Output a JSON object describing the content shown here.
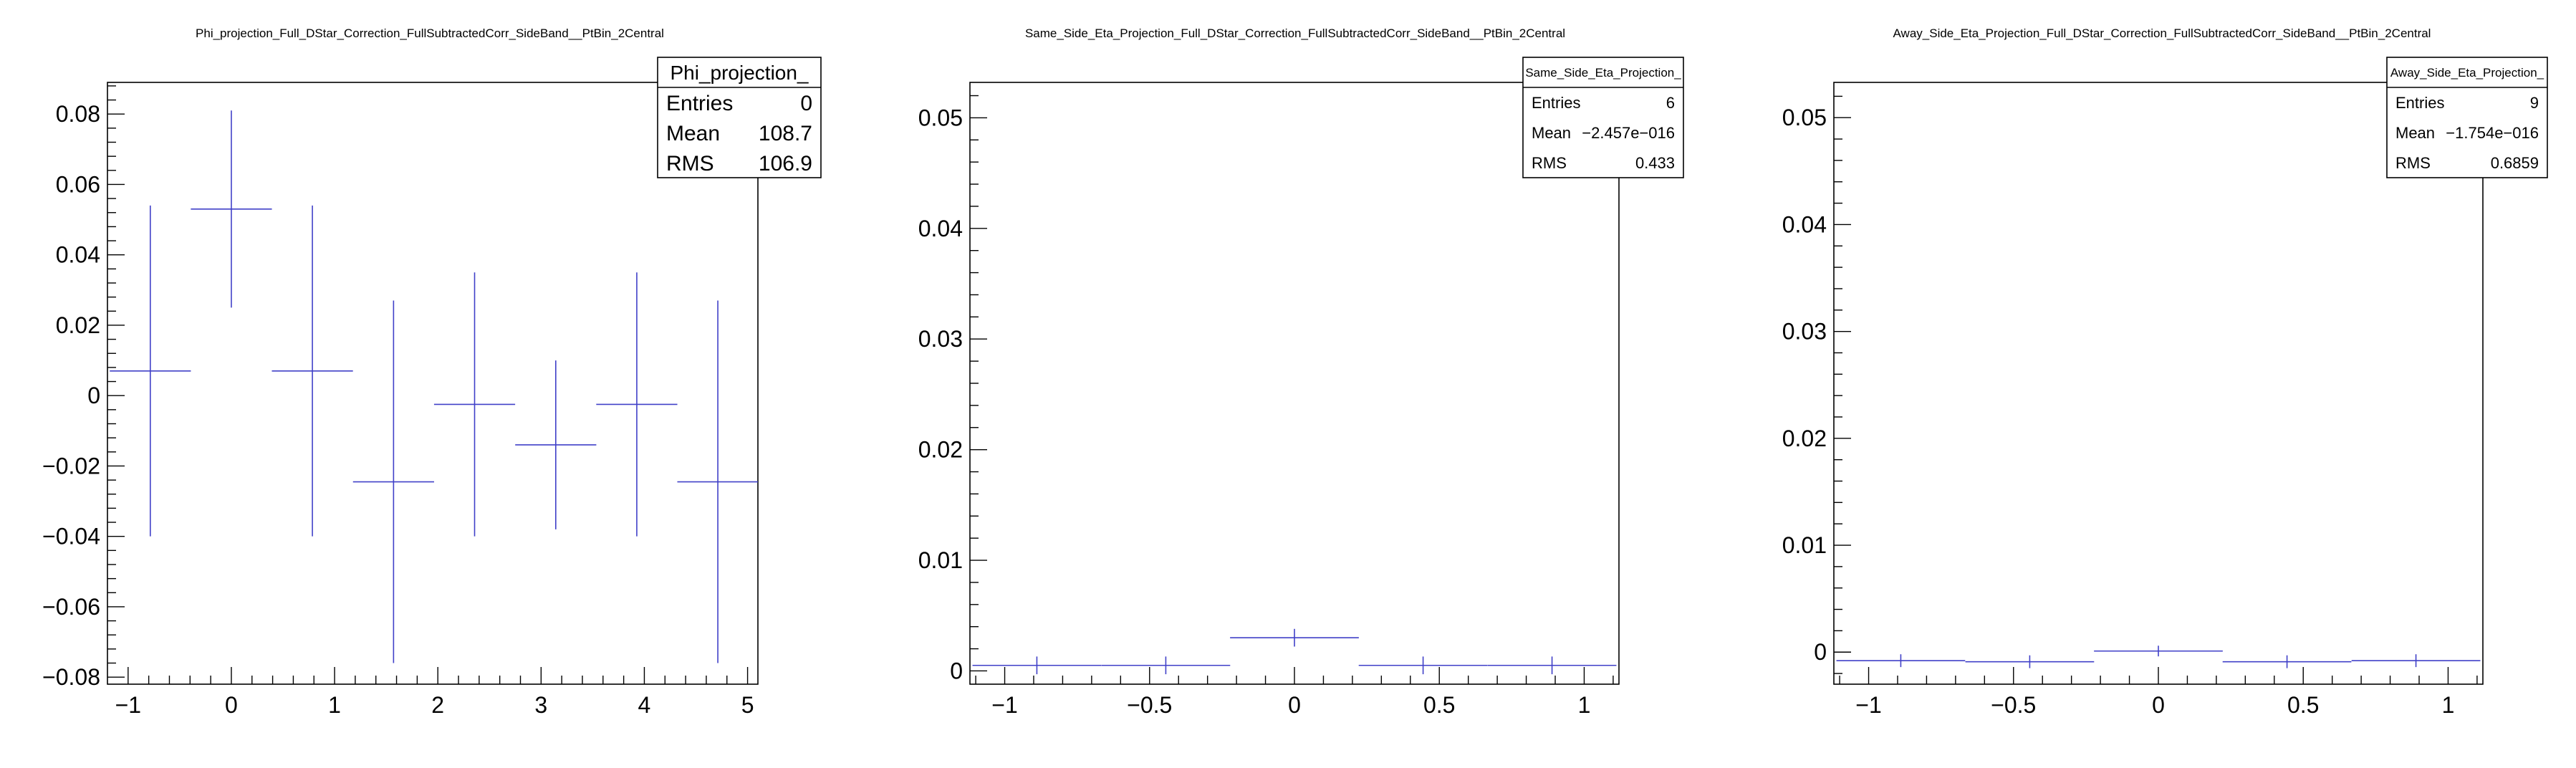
{
  "chart_data": [
    {
      "type": "scatter",
      "title": "Phi_projection_Full_DStar_Correction_FullSubtractedCorr_SideBand__PtBin_2Central",
      "xlabel": "",
      "ylabel": "",
      "xlim": [
        -1.2,
        5.1
      ],
      "ylim": [
        -0.082,
        0.089
      ],
      "xticks": [
        -1,
        0,
        1,
        2,
        3,
        4,
        5
      ],
      "xtick_labels": [
        "−1",
        "0",
        "1",
        "2",
        "3",
        "4",
        "5"
      ],
      "yticks": [
        -0.08,
        -0.06,
        -0.04,
        -0.02,
        0,
        0.02,
        0.04,
        0.06,
        0.08
      ],
      "ytick_labels": [
        "−0.08",
        "−0.06",
        "−0.04",
        "−0.02",
        "0",
        "0.02",
        "0.04",
        "0.06",
        "0.08"
      ],
      "bin_half_width": 0.3927,
      "points": [
        {
          "x": -0.785,
          "y": 0.007,
          "yerr": 0.047
        },
        {
          "x": 0.0,
          "y": 0.053,
          "yerr": 0.028
        },
        {
          "x": 0.785,
          "y": 0.007,
          "yerr": 0.047
        },
        {
          "x": 1.571,
          "y": -0.0245,
          "yerr": 0.0515
        },
        {
          "x": 2.356,
          "y": -0.0025,
          "yerr": 0.0375
        },
        {
          "x": 3.142,
          "y": -0.014,
          "yerr": 0.024
        },
        {
          "x": 3.927,
          "y": -0.0025,
          "yerr": 0.0375
        },
        {
          "x": 4.712,
          "y": -0.0245,
          "yerr": 0.0515
        }
      ],
      "stats": {
        "name": "Phi_projection_",
        "rows": [
          {
            "label": "Entries",
            "value": "0"
          },
          {
            "label": "Mean",
            "value": "108.7"
          },
          {
            "label": "RMS",
            "value": "106.9"
          }
        ]
      }
    },
    {
      "type": "scatter",
      "title": "Same_Side_Eta_Projection_Full_DStar_Correction_FullSubtractedCorr_SideBand__PtBin_2Central",
      "xlabel": "",
      "ylabel": "",
      "xlim": [
        -1.12,
        1.12
      ],
      "ylim": [
        -0.0012,
        0.0532
      ],
      "xticks": [
        -1,
        -0.5,
        0,
        0.5,
        1
      ],
      "xtick_labels": [
        "−1",
        "−0.5",
        "0",
        "0.5",
        "1"
      ],
      "yticks": [
        0,
        0.01,
        0.02,
        0.03,
        0.04,
        0.05
      ],
      "ytick_labels": [
        "0",
        "0.01",
        "0.02",
        "0.03",
        "0.04",
        "0.05"
      ],
      "bin_half_width": 0.2222,
      "points": [
        {
          "x": -0.889,
          "y": 0.0005,
          "yerr": 0.0008
        },
        {
          "x": -0.444,
          "y": 0.0005,
          "yerr": 0.0008
        },
        {
          "x": 0.0,
          "y": 0.003,
          "yerr": 0.0008
        },
        {
          "x": 0.444,
          "y": 0.0005,
          "yerr": 0.0008
        },
        {
          "x": 0.889,
          "y": 0.0005,
          "yerr": 0.0008
        }
      ],
      "stats": {
        "name": "Same_Side_Eta_Projection_",
        "rows": [
          {
            "label": "Entries",
            "value": "6"
          },
          {
            "label": "Mean",
            "value": "−2.457e−016"
          },
          {
            "label": "RMS",
            "value": "0.433"
          }
        ]
      }
    },
    {
      "type": "scatter",
      "title": "Away_Side_Eta_Projection_Full_DStar_Correction_FullSubtractedCorr_SideBand__PtBin_2Central",
      "xlabel": "",
      "ylabel": "",
      "xlim": [
        -1.12,
        1.12
      ],
      "ylim": [
        -0.003,
        0.0533
      ],
      "xticks": [
        -1,
        -0.5,
        0,
        0.5,
        1
      ],
      "xtick_labels": [
        "−1",
        "−0.5",
        "0",
        "0.5",
        "1"
      ],
      "yticks": [
        0,
        0.01,
        0.02,
        0.03,
        0.04,
        0.05
      ],
      "ytick_labels": [
        "0",
        "0.01",
        "0.02",
        "0.03",
        "0.04",
        "0.05"
      ],
      "bin_half_width": 0.2222,
      "points": [
        {
          "x": -0.889,
          "y": -0.0008,
          "yerr": 0.0006
        },
        {
          "x": -0.444,
          "y": -0.0009,
          "yerr": 0.0006
        },
        {
          "x": 0.0,
          "y": 0.0001,
          "yerr": 0.0005
        },
        {
          "x": 0.444,
          "y": -0.0009,
          "yerr": 0.0006
        },
        {
          "x": 0.889,
          "y": -0.0008,
          "yerr": 0.0006
        }
      ],
      "stats": {
        "name": "Away_Side_Eta_Projection_",
        "rows": [
          {
            "label": "Entries",
            "value": "9"
          },
          {
            "label": "Mean",
            "value": "−1.754e−016"
          },
          {
            "label": "RMS",
            "value": "0.6859"
          }
        ]
      }
    }
  ]
}
